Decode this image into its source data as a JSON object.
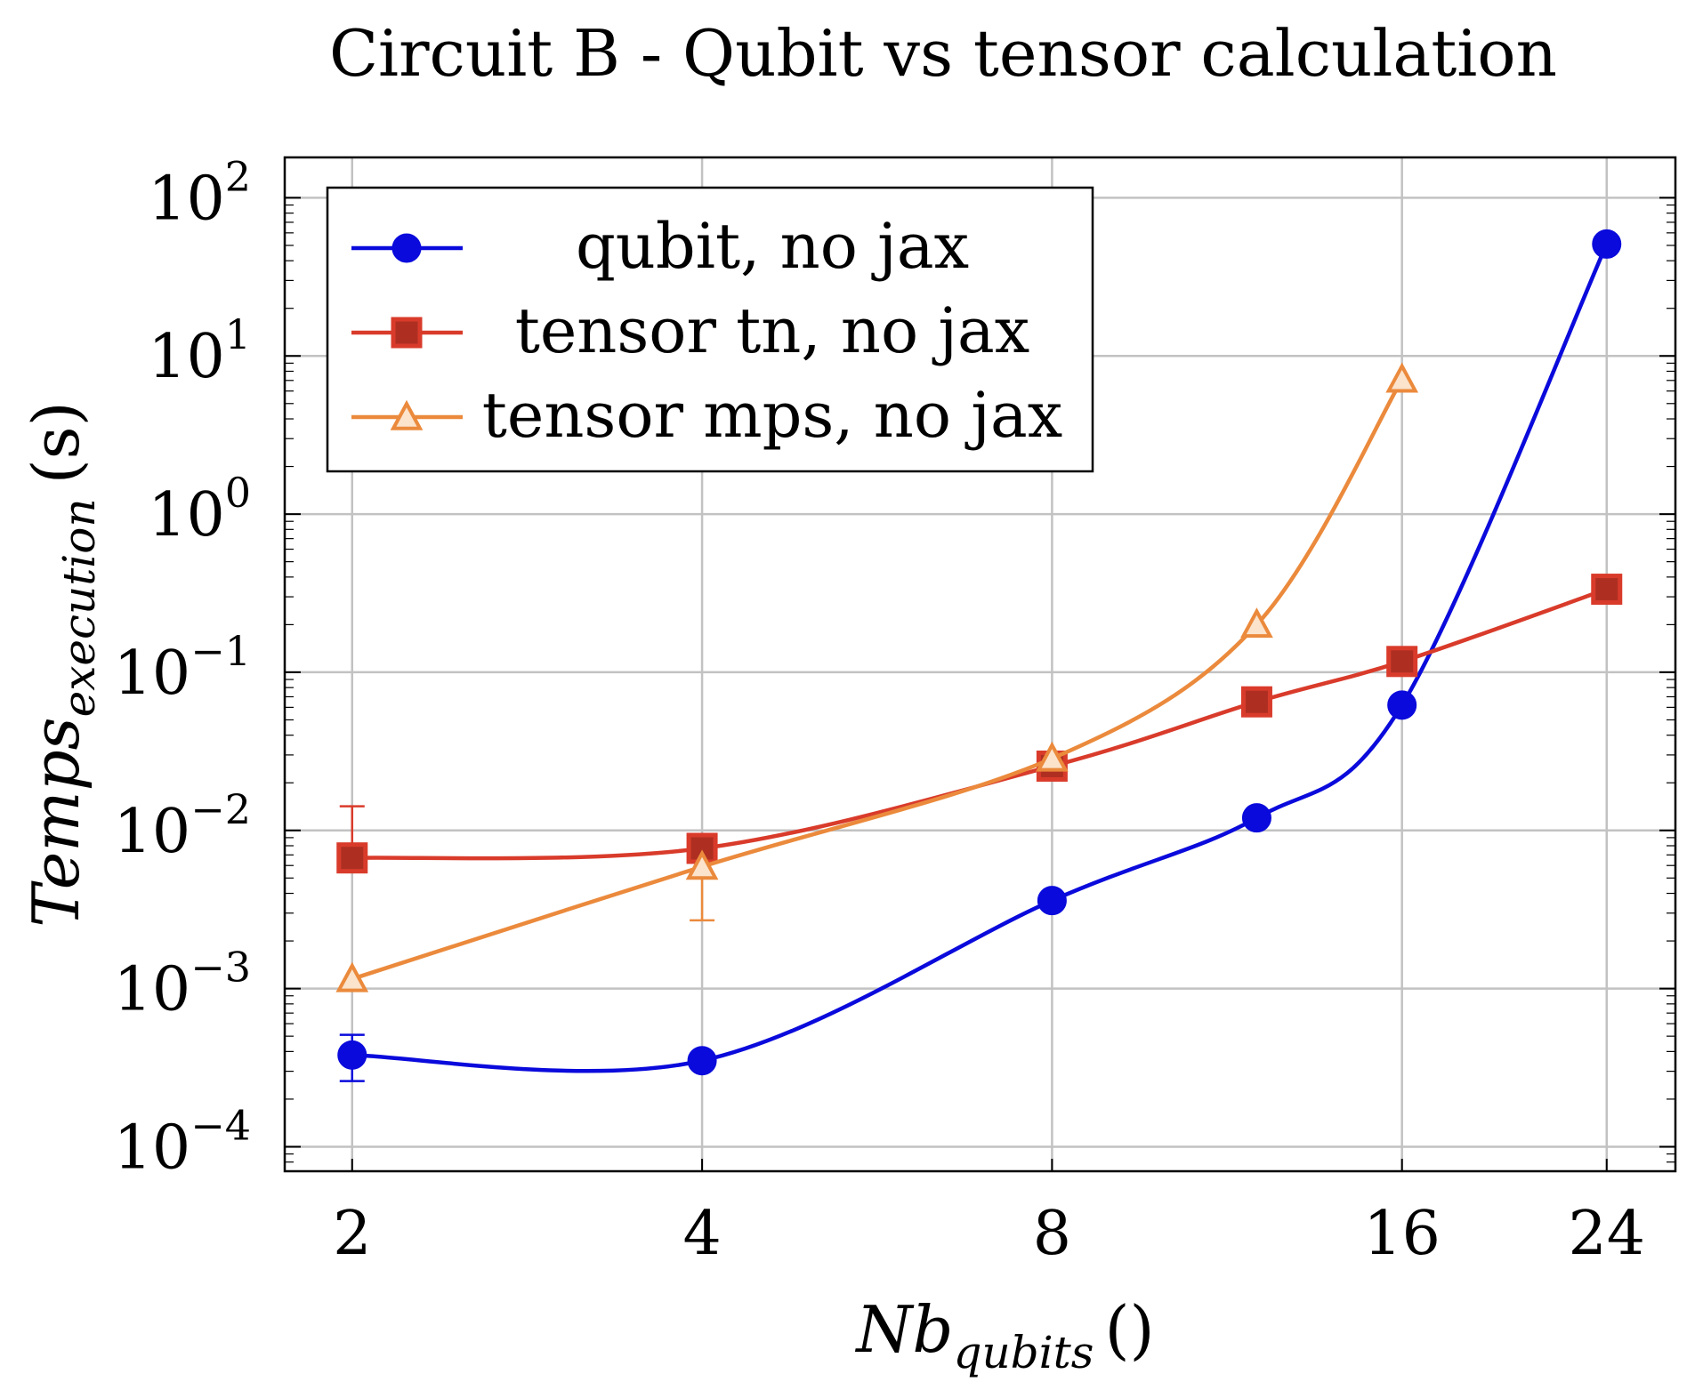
{
  "chart_data": {
    "type": "line",
    "title": "Circuit B - Qubit vs tensor calculation",
    "xlabel": {
      "main": "Nb",
      "sub": "qubits",
      "unit": "()"
    },
    "ylabel": {
      "main": "Temps",
      "sub": "execution",
      "unit": "(s)"
    },
    "x_ticks": [
      "2",
      "4",
      "8",
      "16",
      "24"
    ],
    "xlim": [
      1.75,
      27.5
    ],
    "x_scale": "log",
    "y_scale": "log",
    "ylim": [
      7e-05,
      180
    ],
    "y_ticks": [
      {
        "base": "10",
        "exp": "2",
        "value": 100
      },
      {
        "base": "10",
        "exp": "1",
        "value": 10
      },
      {
        "base": "10",
        "exp": "0",
        "value": 1
      },
      {
        "base": "10",
        "exp": "−1",
        "value": 0.1
      },
      {
        "base": "10",
        "exp": "−2",
        "value": 0.01
      },
      {
        "base": "10",
        "exp": "−3",
        "value": 0.001
      },
      {
        "base": "10",
        "exp": "−4",
        "value": 0.0001
      }
    ],
    "grid": true,
    "legend_position": "top-left",
    "series": [
      {
        "name": "qubit, no jax",
        "color": "#0a0adc",
        "marker": "circle",
        "points": [
          {
            "x": 2,
            "y": 0.00038,
            "err_lo": 0.00026,
            "err_hi": 0.00051
          },
          {
            "x": 4,
            "y": 0.00035
          },
          {
            "x": 8,
            "y": 0.0036
          },
          {
            "x": 12,
            "y": 0.012
          },
          {
            "x": 16,
            "y": 0.062
          },
          {
            "x": 24,
            "y": 51
          }
        ]
      },
      {
        "name": "tensor tn, no jax",
        "color": "#d93b2b",
        "marker": "square",
        "points": [
          {
            "x": 2,
            "y": 0.0067,
            "err_lo": 0.0067,
            "err_hi": 0.0142
          },
          {
            "x": 4,
            "y": 0.0077
          },
          {
            "x": 8,
            "y": 0.0255
          },
          {
            "x": 12,
            "y": 0.065
          },
          {
            "x": 16,
            "y": 0.117
          },
          {
            "x": 24,
            "y": 0.335
          }
        ]
      },
      {
        "name": "tensor mps, no jax",
        "color": "#eb8a3c",
        "marker": "triangle",
        "points": [
          {
            "x": 2,
            "y": 0.00115
          },
          {
            "x": 4,
            "y": 0.0059,
            "err_lo": 0.0027,
            "err_hi": 0.0059
          },
          {
            "x": 8,
            "y": 0.0285
          },
          {
            "x": 12,
            "y": 0.2
          },
          {
            "x": 16,
            "y": 7.1
          }
        ]
      }
    ]
  }
}
